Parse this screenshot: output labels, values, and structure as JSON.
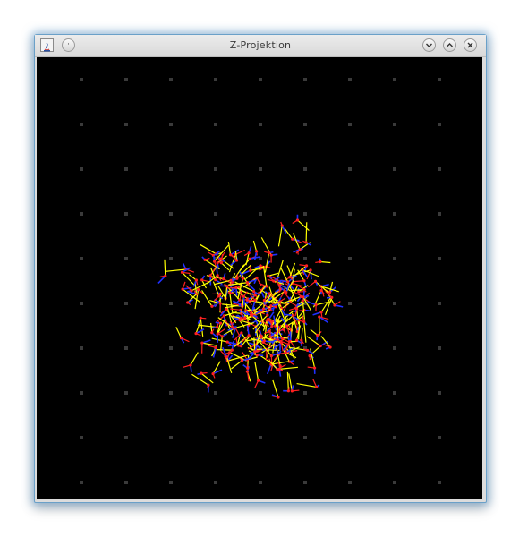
{
  "window": {
    "title": "Z-Projektion",
    "icons": {
      "app": "java-app-icon",
      "menu": "window-menu-icon",
      "minimize": "chevron-down-icon",
      "maximize": "chevron-up-icon",
      "close": "close-icon"
    }
  },
  "canvas": {
    "background": "#000000",
    "grid_color": "#3a3a3a",
    "marker_colors": {
      "red": "#ff2020",
      "yellow": "#ffff00",
      "blue": "#2030ff"
    }
  }
}
